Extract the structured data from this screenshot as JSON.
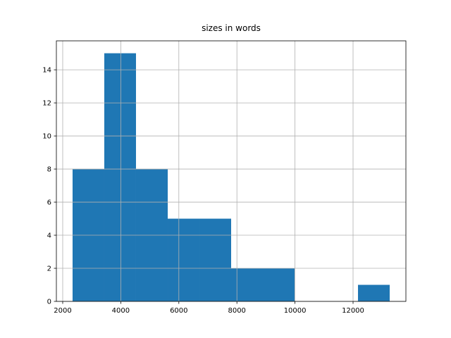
{
  "chart_data": {
    "type": "histogram",
    "title": "sizes in words",
    "bins": [
      2340,
      3432,
      4524,
      5617,
      6709,
      7801,
      8893,
      9985,
      11078,
      12170,
      13262
    ],
    "values": [
      8,
      15,
      8,
      5,
      5,
      2,
      2,
      0,
      0,
      1
    ],
    "color": "#1f77b4",
    "xlim": [
      1782,
      13820
    ],
    "xticks": [
      2000,
      4000,
      6000,
      8000,
      10000,
      12000
    ],
    "ylim": [
      0,
      15.75
    ],
    "yticks": [
      0,
      2,
      4,
      6,
      8,
      10,
      12,
      14
    ],
    "grid": true
  }
}
